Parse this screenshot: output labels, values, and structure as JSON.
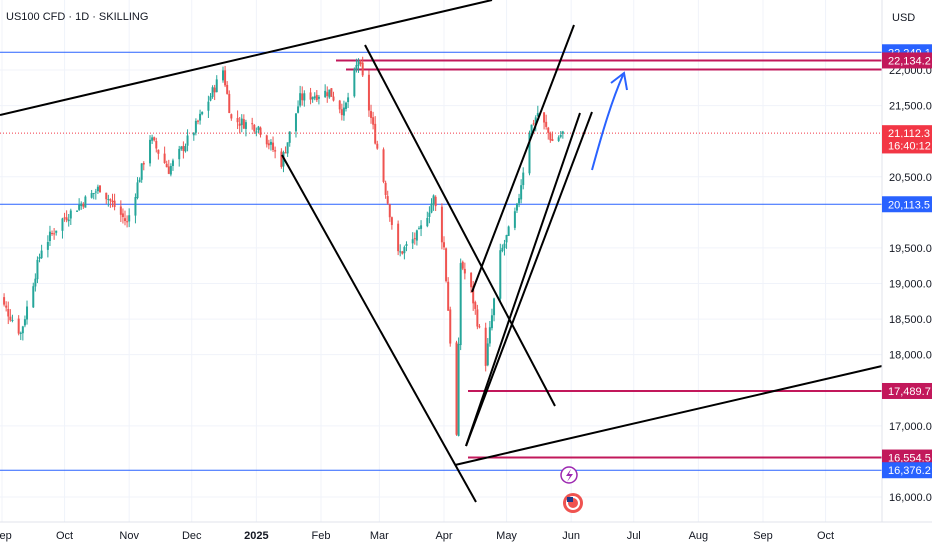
{
  "header": {
    "symbol": "US100 CFD · 1D · SKILLING",
    "currency": "USD"
  },
  "chart_data": {
    "type": "candlestick",
    "title": "US100 CFD · 1D · SKILLING",
    "ylim": [
      15700,
      22520
    ],
    "ytick_labels": [
      "22,000.0",
      "21,500.0",
      "20,500.0",
      "19,500.0",
      "19,000.0",
      "18,500.0",
      "18,000.0",
      "17,000.0",
      "16,000.0"
    ],
    "yticks": [
      22000,
      21500,
      20500,
      19500,
      19000,
      18500,
      18000,
      17000,
      16000
    ],
    "x_labels": [
      "Sep",
      "Oct",
      "Nov",
      "Dec",
      "2025",
      "Feb",
      "Mar",
      "Apr",
      "May",
      "Jun",
      "Jul",
      "Aug",
      "Sep",
      "Oct"
    ],
    "x_dates": [
      "2024-09-01",
      "2024-10-01",
      "2024-11-01",
      "2024-12-01",
      "2025-01-01",
      "2025-02-01",
      "2025-03-01",
      "2025-04-01",
      "2025-05-01",
      "2025-06-01",
      "2025-07-01",
      "2025-08-01",
      "2025-09-01",
      "2025-10-01"
    ],
    "path": [
      [
        "2024-08-28",
        18900
      ],
      [
        "2024-09-06",
        18500
      ],
      [
        "2024-09-10",
        18300
      ],
      [
        "2024-09-20",
        19500
      ],
      [
        "2024-09-30",
        19900
      ],
      [
        "2024-10-08",
        20100
      ],
      [
        "2024-10-18",
        20350
      ],
      [
        "2024-10-31",
        19850
      ],
      [
        "2024-11-11",
        21050
      ],
      [
        "2024-11-20",
        20600
      ],
      [
        "2024-12-02",
        21150
      ],
      [
        "2024-12-16",
        22000
      ],
      [
        "2024-12-20",
        21300
      ],
      [
        "2025-01-02",
        21200
      ],
      [
        "2025-01-13",
        20700
      ],
      [
        "2025-01-22",
        21600
      ],
      [
        "2025-02-05",
        21700
      ],
      [
        "2025-02-12",
        21400
      ],
      [
        "2025-02-19",
        22150
      ],
      [
        "2025-02-28",
        20900
      ],
      [
        "2025-03-10",
        19400
      ],
      [
        "2025-03-20",
        19700
      ],
      [
        "2025-03-27",
        20200
      ],
      [
        "2025-04-01",
        19500
      ],
      [
        "2025-04-04",
        18200
      ],
      [
        "2025-04-07",
        16850
      ],
      [
        "2025-04-09",
        19300
      ],
      [
        "2025-04-14",
        18900
      ],
      [
        "2025-04-21",
        17900
      ],
      [
        "2025-04-28",
        19400
      ],
      [
        "2025-05-06",
        20050
      ],
      [
        "2025-05-12",
        21150
      ],
      [
        "2025-05-16",
        21400
      ],
      [
        "2025-05-23",
        21000
      ],
      [
        "2025-05-28",
        21112.3
      ]
    ],
    "levels": [
      {
        "label": "22,249.1",
        "value": 22249.1,
        "color": "#2962ff",
        "badge": "#2962ff"
      },
      {
        "label": "22,134.2",
        "value": 22134.2,
        "color": "#c2185b",
        "badge": "#c2185b"
      },
      {
        "label": "21,112.3",
        "value": 21112.3,
        "color": "#f23645",
        "badge": "#f23645"
      },
      {
        "label": "16:40:12",
        "value": 20940,
        "color": null,
        "badge": "#f23645"
      },
      {
        "label": "20,113.5",
        "value": 20113.5,
        "color": "#2962ff",
        "badge": "#2962ff"
      },
      {
        "label": "17,489.7",
        "value": 17489.7,
        "color": "#c2185b",
        "badge": "#c2185b"
      },
      {
        "label": "16,554.5",
        "value": 16554.5,
        "color": "#c2185b",
        "badge": "#c2185b"
      },
      {
        "label": "16,376.2",
        "value": 16376.2,
        "color": "#2962ff",
        "badge": "#2962ff"
      }
    ],
    "colors": {
      "up": "#26a69a",
      "down": "#ef5350",
      "trendline": "#000000",
      "arrow": "#2962ff"
    }
  }
}
